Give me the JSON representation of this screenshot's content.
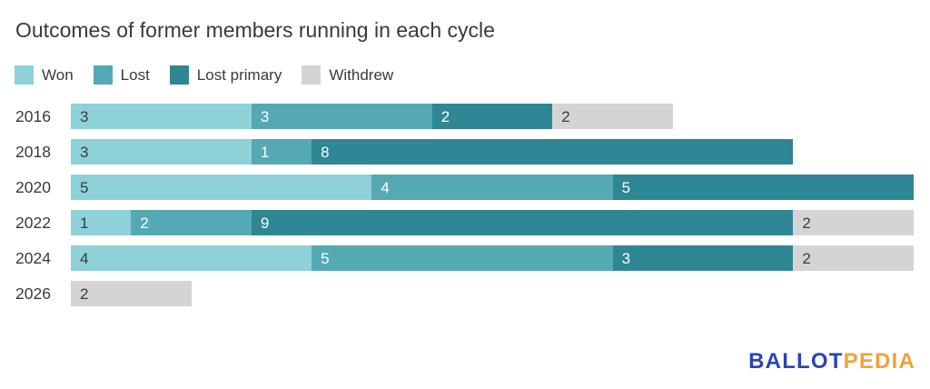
{
  "title": "Outcomes of former members running in each cycle",
  "colors": {
    "won": "#8ed1d9",
    "lost": "#55a9b4",
    "lost_primary": "#2f8694",
    "withdrew": "#d4d4d4",
    "text_dark": "#3b3b3b",
    "text_light": "#ffffff",
    "logo_blue": "#2b44b8",
    "logo_orange": "#f2a13c"
  },
  "legend": [
    {
      "key": "won",
      "label": "Won"
    },
    {
      "key": "lost",
      "label": "Lost"
    },
    {
      "key": "lost_primary",
      "label": "Lost primary"
    },
    {
      "key": "withdrew",
      "label": "Withdrew"
    }
  ],
  "chart_data": {
    "type": "bar",
    "orientation": "horizontal",
    "stacked": true,
    "title": "Outcomes of former members running in each cycle",
    "categories": [
      "2016",
      "2018",
      "2020",
      "2022",
      "2024",
      "2026"
    ],
    "series": [
      {
        "name": "Won",
        "key": "won",
        "values": [
          3,
          3,
          5,
          1,
          4,
          0
        ]
      },
      {
        "name": "Lost",
        "key": "lost",
        "values": [
          3,
          1,
          4,
          2,
          5,
          0
        ]
      },
      {
        "name": "Lost primary",
        "key": "lost_primary",
        "values": [
          2,
          8,
          5,
          9,
          3,
          0
        ]
      },
      {
        "name": "Withdrew",
        "key": "withdrew",
        "values": [
          2,
          0,
          0,
          2,
          2,
          2
        ]
      }
    ],
    "totals": [
      10,
      12,
      14,
      14,
      14,
      2
    ],
    "xlim": [
      0,
      14
    ],
    "grid": false,
    "legend_position": "top",
    "value_labels": "inside-left of each segment"
  },
  "logo": {
    "part1": "BALLOT",
    "part2": "PEDIA"
  }
}
